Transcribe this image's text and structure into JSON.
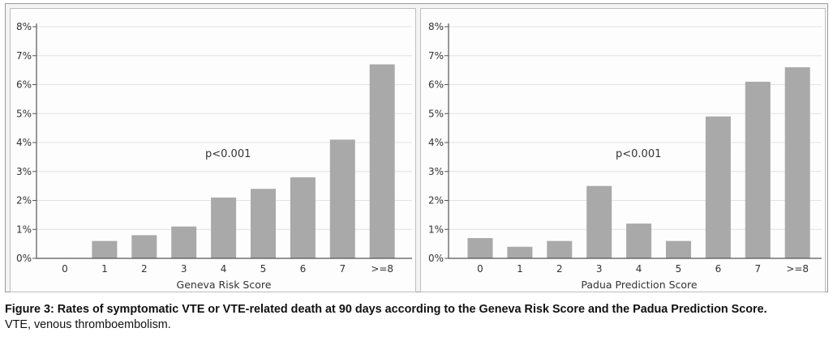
{
  "chart_data": [
    {
      "type": "bar",
      "title": "",
      "xlabel": "Geneva Risk Score",
      "ylabel": "",
      "categories": [
        "0",
        "1",
        "2",
        "3",
        "4",
        "5",
        "6",
        "7",
        ">=8"
      ],
      "values": [
        0.0,
        0.6,
        0.8,
        1.1,
        2.1,
        2.4,
        2.8,
        4.1,
        6.7
      ],
      "ylim": [
        0,
        8
      ],
      "yticks": [
        "0%",
        "1%",
        "2%",
        "3%",
        "4%",
        "5%",
        "6%",
        "7%",
        "8%"
      ],
      "grid": true,
      "annotation": "p<0.001"
    },
    {
      "type": "bar",
      "title": "",
      "xlabel": "Padua Prediction Score",
      "ylabel": "",
      "categories": [
        "0",
        "1",
        "2",
        "3",
        "4",
        "5",
        "6",
        "7",
        ">=8"
      ],
      "values": [
        0.7,
        0.4,
        0.6,
        2.5,
        1.2,
        0.6,
        4.9,
        6.1,
        6.6
      ],
      "ylim": [
        0,
        8
      ],
      "yticks": [
        "0%",
        "1%",
        "2%",
        "3%",
        "4%",
        "5%",
        "6%",
        "7%",
        "8%"
      ],
      "grid": true,
      "annotation": "p<0.001"
    }
  ],
  "colors": {
    "bar": "#a9a9a9",
    "grid": "#e2e2e2",
    "axis": "#555555",
    "text": "#333333"
  },
  "caption": {
    "title": "Figure 3: Rates of symptomatic VTE or VTE-related death at 90 days according to the Geneva Risk Score and the Padua Prediction Score.",
    "note": "VTE, venous thromboembolism."
  }
}
